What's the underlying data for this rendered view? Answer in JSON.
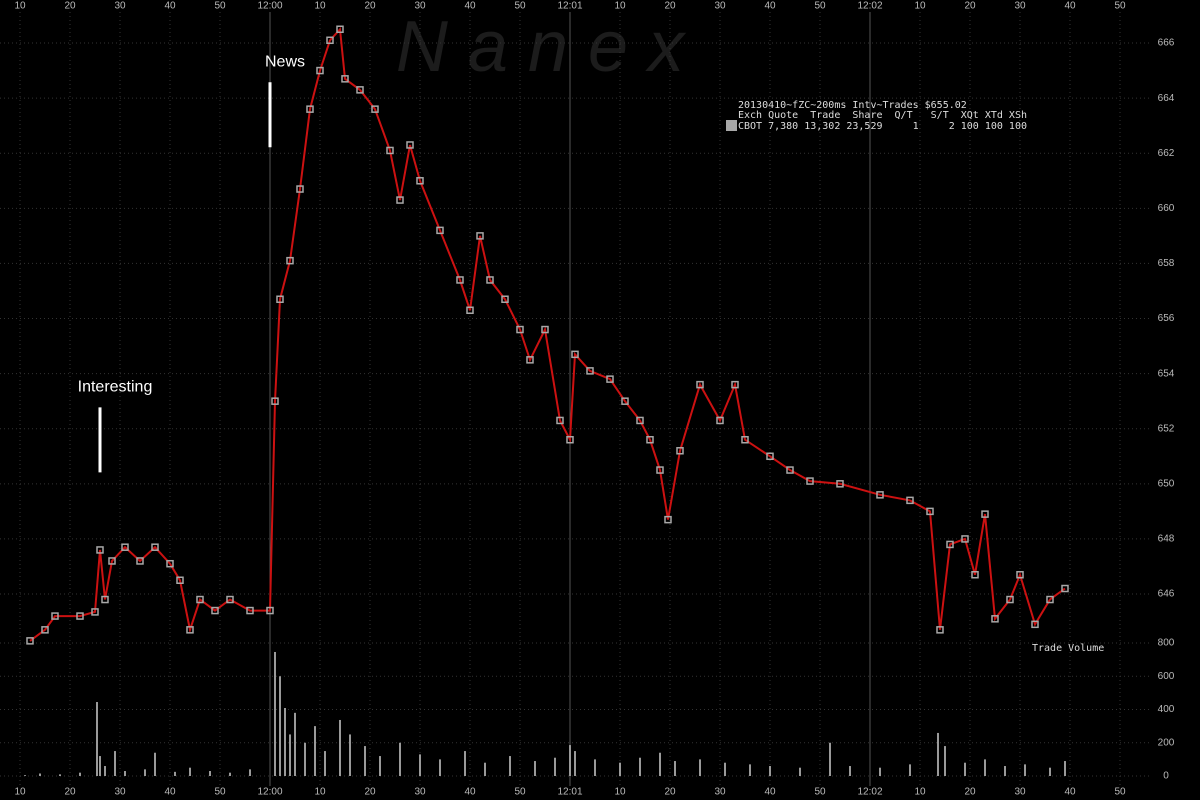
{
  "chart_data": [
    {
      "type": "line",
      "watermark": "N a n e x",
      "x": [
        12,
        15,
        17,
        22,
        25,
        26,
        27,
        28.4,
        31,
        34,
        37,
        40,
        42,
        44,
        46,
        49,
        52,
        56,
        60,
        61,
        62,
        64,
        66,
        68,
        70,
        72,
        74,
        75,
        78,
        81,
        84,
        86,
        88,
        90,
        94,
        98,
        100,
        102,
        104,
        107,
        110,
        112,
        115,
        118,
        120,
        121,
        124,
        128,
        131,
        134,
        136,
        138,
        139.6,
        142,
        146,
        150,
        153,
        155,
        160,
        164,
        168,
        174,
        182,
        188,
        192,
        194,
        196,
        199,
        201,
        203,
        205,
        208,
        210,
        213,
        216,
        219
      ],
      "values": [
        644.3,
        644.7,
        645.2,
        645.2,
        645.35,
        647.6,
        645.8,
        647.2,
        647.7,
        647.2,
        647.7,
        647.1,
        646.5,
        644.7,
        645.8,
        645.4,
        645.8,
        645.4,
        645.4,
        653.0,
        656.7,
        658.1,
        660.7,
        663.6,
        665.0,
        666.1,
        666.5,
        664.7,
        664.3,
        663.6,
        662.1,
        660.3,
        662.3,
        661.0,
        659.2,
        657.4,
        656.3,
        659.0,
        657.4,
        656.7,
        655.6,
        654.5,
        655.6,
        652.3,
        651.6,
        654.7,
        654.1,
        653.8,
        653.0,
        652.3,
        651.6,
        650.5,
        648.7,
        651.2,
        653.6,
        652.3,
        653.6,
        651.6,
        651.0,
        650.5,
        650.1,
        650.0,
        649.6,
        649.4,
        649.0,
        644.7,
        647.8,
        648.0,
        646.7,
        648.9,
        645.1,
        645.8,
        646.7,
        644.9,
        645.8,
        646.2
      ],
      "color": "#cc1111",
      "marker_color": "#a8a8a8",
      "xlim": [
        6,
        236
      ],
      "xticks": [
        10,
        20,
        30,
        40,
        50,
        {
          "value": 60,
          "label": "12:00"
        },
        {
          "value": 70,
          "label": "10"
        },
        {
          "value": 80,
          "label": "20"
        },
        {
          "value": 90,
          "label": "30"
        },
        {
          "value": 100,
          "label": "40"
        },
        {
          "value": 110,
          "label": "50"
        },
        {
          "value": 120,
          "label": "12:01"
        },
        {
          "value": 130,
          "label": "10"
        },
        {
          "value": 140,
          "label": "20"
        },
        {
          "value": 150,
          "label": "30"
        },
        {
          "value": 160,
          "label": "40"
        },
        {
          "value": 170,
          "label": "50"
        },
        {
          "value": 180,
          "label": "12:02"
        },
        {
          "value": 190,
          "label": "10"
        },
        {
          "value": 200,
          "label": "20"
        },
        {
          "value": 210,
          "label": "30"
        },
        {
          "value": 220,
          "label": "40"
        },
        {
          "value": 230,
          "label": "50"
        }
      ],
      "ylim": [
        643.5,
        667.5
      ],
      "yticks": [
        646,
        648,
        650,
        652,
        654,
        656,
        658,
        660,
        662,
        664,
        666
      ],
      "grid": true,
      "annotations": [
        {
          "text": "News",
          "x": 60,
          "y": 665.3
        },
        {
          "text": "Interesting",
          "x": 26,
          "y": 653.5
        }
      ],
      "info": {
        "title": "20130410~fZC~200ms Intv~Trades $655.02",
        "header": "Exch Quote  Trade  Share  Q/T   S/T  XQt XTd XSh",
        "row": "CBOT 7,380 13,302 23,529     1     2 100 100 100"
      }
    },
    {
      "type": "bar",
      "title": "Trade Volume",
      "x": [
        11,
        14,
        18,
        22,
        25.4,
        26,
        27,
        29,
        31,
        35,
        37,
        41,
        44,
        48,
        52,
        56,
        61,
        62,
        63,
        64,
        65,
        67,
        69,
        71,
        74,
        76,
        79,
        82,
        86,
        90,
        94,
        99,
        103,
        108,
        113,
        117,
        120,
        121,
        125,
        130,
        134,
        138,
        141,
        146,
        151,
        156,
        160,
        166,
        172,
        176,
        182,
        188,
        193.6,
        195,
        199,
        203,
        207,
        211,
        216,
        219
      ],
      "values": [
        5,
        15,
        10,
        20,
        445,
        120,
        60,
        150,
        30,
        40,
        140,
        25,
        50,
        30,
        20,
        40,
        746,
        600,
        409,
        250,
        380,
        200,
        300,
        150,
        337,
        250,
        180,
        120,
        200,
        130,
        100,
        150,
        80,
        120,
        90,
        110,
        186,
        150,
        100,
        80,
        110,
        140,
        90,
        100,
        80,
        70,
        60,
        50,
        200,
        60,
        50,
        70,
        259,
        180,
        80,
        100,
        60,
        70,
        50,
        90
      ],
      "color": "#9a9a9a",
      "ylim": [
        0,
        800
      ],
      "yticks": [
        0,
        200,
        400,
        600,
        800
      ]
    }
  ]
}
